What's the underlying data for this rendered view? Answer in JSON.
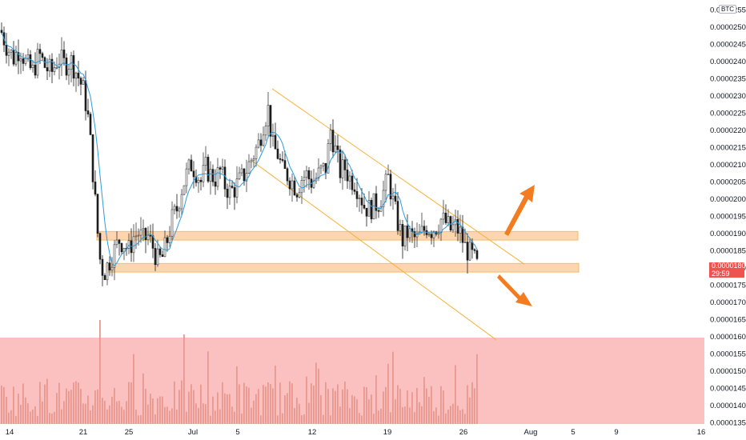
{
  "symbol_badge": "BTC",
  "current_price": "0.00001802",
  "countdown": "29:59",
  "colors": {
    "up": "#3c3c3c",
    "down": "#1c1c1c",
    "ma": "#2e9bdc",
    "channel": "#f7b136",
    "zone_fill": "#fcd6ad",
    "zone_stroke": "#f7b96a",
    "volume_bg": "#fbc0c0",
    "volume_bar": "#e8988f",
    "arrow": "#f47c20",
    "price_tag": "#ef5350"
  },
  "chart_data": {
    "type": "candlestick",
    "y_axis_labels": [
      "0.00002550",
      "0.00002500",
      "0.00002450",
      "0.00002400",
      "0.00002350",
      "0.00002300",
      "0.00002250",
      "0.00002200",
      "0.00002150",
      "0.00002100",
      "0.00002050",
      "0.00002000",
      "0.00001950",
      "0.00001900",
      "0.00001850",
      "0.00001800",
      "0.00001750",
      "0.00001700",
      "0.00001650",
      "0.00001600",
      "0.00001550",
      "0.00001500",
      "0.00001450",
      "0.00001400",
      "0.00001350"
    ],
    "x_axis_labels": [
      "14",
      "21",
      "25",
      "Jul",
      "5",
      "12",
      "19",
      "26",
      "Aug",
      "5",
      "9",
      "16"
    ],
    "ylim": [
      1.35e-05,
      2.55e-05
    ],
    "support_zones": [
      {
        "low": 1.88e-05,
        "high": 1.905e-05
      },
      {
        "low": 1.787e-05,
        "high": 1.812e-05
      }
    ],
    "descending_channel": {
      "upper": {
        "start": 2.32e-05,
        "end": 1.81e-05
      },
      "lower": {
        "start": 2.11e-05,
        "end": 1.59e-05
      }
    },
    "scenarios": [
      "breakout-up",
      "breakdown-down"
    ]
  }
}
